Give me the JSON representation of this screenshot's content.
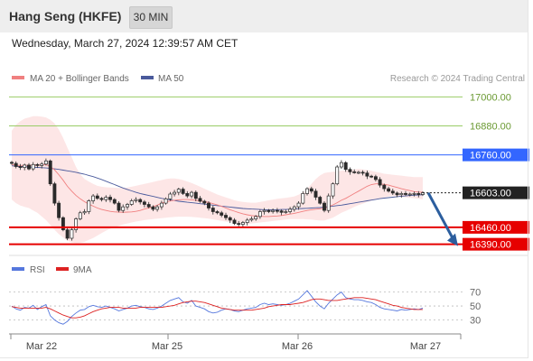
{
  "header": {
    "symbol": "Hang Seng (HKFE)",
    "timeframe": "30 MIN",
    "datetime": "Wednesday, March 27, 2024 12:39:57 AM CET"
  },
  "legend": {
    "ma20_label": "MA 20 + Bollinger Bands",
    "ma50_label": "MA 50",
    "copyright": "Research © 2024 Trading Central",
    "rsi_label": "RSI",
    "ma9_label": "9MA"
  },
  "colors": {
    "ma20": "#f08080",
    "bollinger_fill": "#fde2e2",
    "ma50": "#4a5a9c",
    "support": "#e60000",
    "resistance_green": "#99cc66",
    "pivot_blue": "#3366ff",
    "last_price": "#222222",
    "candles": "#2a2a2a",
    "forecast_arrow": "#2c5e9e",
    "rsi": "#5577dd",
    "rsi_ma9": "#dd2222"
  },
  "chart_data": [
    {
      "type": "candlestick",
      "title": "Hang Seng (HKFE)",
      "timeframe": "30 MIN",
      "x_ticks": [
        "Mar 22",
        "Mar 25",
        "Mar 26",
        "Mar 27"
      ],
      "ylim": [
        16355,
        17065
      ],
      "levels": [
        {
          "value": 17000.0,
          "label": "17000.00",
          "kind": "resistance"
        },
        {
          "value": 16880.0,
          "label": "16880.00",
          "kind": "resistance"
        },
        {
          "value": 16760.0,
          "label": "16760.00",
          "kind": "pivot"
        },
        {
          "value": 16603.0,
          "label": "16603.00",
          "kind": "last"
        },
        {
          "value": 16460.0,
          "label": "16460.00",
          "kind": "support"
        },
        {
          "value": 16390.0,
          "label": "16390.00",
          "kind": "support"
        }
      ],
      "forecast": {
        "from": 16603,
        "to": 16390,
        "direction": "down"
      },
      "close": [
        16725,
        16712,
        16708,
        16718,
        16702,
        16720,
        16716,
        16722,
        16735,
        16640,
        16560,
        16500,
        16450,
        16415,
        16450,
        16495,
        16520,
        16525,
        16570,
        16590,
        16580,
        16575,
        16585,
        16575,
        16560,
        16530,
        16545,
        16555,
        16570,
        16575,
        16565,
        16555,
        16545,
        16535,
        16545,
        16560,
        16578,
        16598,
        16605,
        16618,
        16600,
        16590,
        16605,
        16580,
        16568,
        16560,
        16540,
        16525,
        16520,
        16510,
        16500,
        16490,
        16476,
        16472,
        16480,
        16490,
        16495,
        16505,
        16525,
        16530,
        16525,
        16530,
        16528,
        16522,
        16525,
        16535,
        16545,
        16560,
        16600,
        16620,
        16610,
        16585,
        16560,
        16530,
        16590,
        16640,
        16710,
        16728,
        16700,
        16690,
        16688,
        16688,
        16685,
        16672,
        16670,
        16658,
        16635,
        16620,
        16610,
        16602,
        16595,
        16600,
        16596,
        16598,
        16600,
        16596,
        16603
      ],
      "ma20": [
        16720,
        16718,
        16716,
        16718,
        16716,
        16718,
        16717,
        16718,
        16720,
        16712,
        16698,
        16678,
        16655,
        16630,
        16610,
        16592,
        16578,
        16566,
        16556,
        16548,
        16540,
        16534,
        16530,
        16526,
        16524,
        16523,
        16522,
        16523,
        16524,
        16526,
        16530,
        16536,
        16540,
        16546,
        16552,
        16560,
        16565,
        16569,
        16572,
        16574,
        16575,
        16575,
        16574,
        16572,
        16570,
        16567,
        16563,
        16558,
        16553,
        16547,
        16540,
        16533,
        16527,
        16521,
        16516,
        16512,
        16509,
        16507,
        16506,
        16505,
        16505,
        16506,
        16507,
        16509,
        16512,
        16515,
        16518,
        16522,
        16526,
        16530,
        16533,
        16535,
        16537,
        16539,
        16545,
        16553,
        16562,
        16572,
        16580,
        16590,
        16600,
        16610,
        16620,
        16630,
        16637,
        16640,
        16640,
        16638,
        16635,
        16630,
        16625,
        16620,
        16616,
        16612,
        16608,
        16606,
        16605
      ],
      "bollinger_upper": [
        16860,
        16885,
        16900,
        16910,
        16915,
        16920,
        16920,
        16918,
        16915,
        16905,
        16890,
        16865,
        16830,
        16790,
        16750,
        16710,
        16680,
        16660,
        16650,
        16640,
        16632,
        16628,
        16626,
        16625,
        16624,
        16623,
        16623,
        16625,
        16628,
        16632,
        16636,
        16640,
        16644,
        16648,
        16652,
        16656,
        16660,
        16662,
        16662,
        16660,
        16656,
        16650,
        16644,
        16636,
        16628,
        16620,
        16612,
        16604,
        16596,
        16590,
        16584,
        16578,
        16572,
        16568,
        16565,
        16563,
        16562,
        16562,
        16565,
        16568,
        16572,
        16575,
        16578,
        16580,
        16582,
        16585,
        16588,
        16595,
        16605,
        16620,
        16640,
        16660,
        16675,
        16685,
        16688,
        16690,
        16692,
        16694,
        16696,
        16698,
        16700,
        16702,
        16700,
        16698,
        16694,
        16690,
        16686,
        16682,
        16680,
        16678,
        16676,
        16674,
        16672,
        16670,
        16668,
        16668,
        16668
      ],
      "bollinger_lower": [
        16575,
        16560,
        16550,
        16545,
        16540,
        16530,
        16520,
        16505,
        16490,
        16470,
        16450,
        16432,
        16418,
        16405,
        16398,
        16395,
        16396,
        16400,
        16408,
        16416,
        16426,
        16436,
        16446,
        16454,
        16460,
        16466,
        16472,
        16476,
        16480,
        16484,
        16487,
        16490,
        16492,
        16494,
        16496,
        16498,
        16500,
        16502,
        16503,
        16504,
        16504,
        16504,
        16503,
        16502,
        16500,
        16498,
        16496,
        16493,
        16490,
        16487,
        16484,
        16481,
        16478,
        16476,
        16474,
        16474,
        16476,
        16478,
        16480,
        16482,
        16484,
        16486,
        16488,
        16490,
        16492,
        16494,
        16494,
        16494,
        16494,
        16493,
        16492,
        16490,
        16488,
        16488,
        16494,
        16500,
        16510,
        16520,
        16528,
        16536,
        16545,
        16552,
        16558,
        16565,
        16570,
        16575,
        16580,
        16584,
        16588,
        16590,
        16588,
        16586,
        16584,
        16582,
        16580,
        16578,
        16576
      ],
      "ma50": [
        16715,
        16713,
        16712,
        16711,
        16710,
        16709,
        16708,
        16707,
        16706,
        16704,
        16702,
        16700,
        16697,
        16694,
        16691,
        16688,
        16684,
        16680,
        16675,
        16670,
        16664,
        16658,
        16651,
        16644,
        16637,
        16630,
        16623,
        16617,
        16611,
        16605,
        16600,
        16596,
        16592,
        16588,
        16584,
        16580,
        16577,
        16574,
        16571,
        16568,
        16566,
        16564,
        16562,
        16560,
        16558,
        16556,
        16554,
        16552,
        16550,
        16548,
        16546,
        16544,
        16542,
        16540,
        16538,
        16537,
        16536,
        16535,
        16534,
        16533,
        16533,
        16533,
        16533,
        16534,
        16534,
        16535,
        16536,
        16537,
        16538,
        16539,
        16540,
        16541,
        16542,
        16544,
        16546,
        16548,
        16550,
        16552,
        16555,
        16558,
        16561,
        16564,
        16567,
        16570,
        16573,
        16576,
        16579,
        16581,
        16583,
        16585,
        16587,
        16589,
        16590,
        16592,
        16593,
        16594,
        16595
      ]
    },
    {
      "type": "line",
      "title": "RSI",
      "ylim": [
        10,
        85
      ],
      "y_ticks": [
        70,
        50,
        30
      ],
      "series": [
        {
          "name": "RSI",
          "values": [
            50,
            46,
            44,
            48,
            47,
            51,
            45,
            49,
            52,
            36,
            30,
            26,
            24,
            28,
            35,
            40,
            44,
            45,
            49,
            51,
            49,
            48,
            50,
            48,
            46,
            43,
            45,
            47,
            50,
            51,
            49,
            48,
            46,
            45,
            47,
            50,
            54,
            58,
            60,
            62,
            56,
            54,
            58,
            50,
            48,
            46,
            42,
            40,
            41,
            44,
            46,
            45,
            43,
            42,
            44,
            46,
            47,
            48,
            52,
            54,
            52,
            53,
            52,
            51,
            52,
            54,
            57,
            60,
            66,
            72,
            64,
            56,
            50,
            46,
            54,
            60,
            66,
            70,
            62,
            60,
            59,
            59,
            58,
            56,
            55,
            52,
            48,
            46,
            45,
            44,
            43,
            45,
            44,
            45,
            46,
            45,
            47
          ]
        },
        {
          "name": "9MA",
          "values": [
            49,
            48,
            47,
            47,
            47,
            47,
            47,
            47,
            48,
            46,
            43,
            40,
            37,
            35,
            33,
            33,
            34,
            36,
            39,
            42,
            44,
            46,
            47,
            48,
            48,
            48,
            47,
            47,
            47,
            47,
            48,
            48,
            48,
            48,
            48,
            48,
            49,
            50,
            51,
            53,
            55,
            56,
            57,
            57,
            56,
            55,
            53,
            51,
            49,
            47,
            46,
            45,
            44,
            44,
            44,
            44,
            44,
            45,
            46,
            47,
            49,
            50,
            51,
            52,
            52,
            52,
            53,
            54,
            55,
            57,
            59,
            60,
            60,
            59,
            58,
            58,
            58,
            59,
            60,
            61,
            62,
            62,
            62,
            61,
            60,
            59,
            57,
            55,
            53,
            51,
            50,
            48,
            47,
            46,
            45,
            45,
            45
          ]
        }
      ]
    }
  ]
}
